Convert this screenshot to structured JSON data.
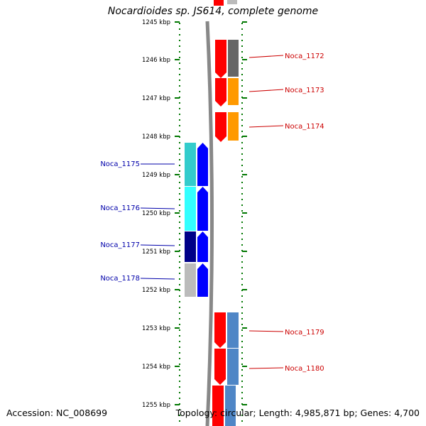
{
  "title": "Nocardioides sp. JS614, complete genome",
  "footer": {
    "accession": "Accession: NC_008699",
    "summary": "Topology: circular; Length: 4,985,871 bp; Genes: 4,700"
  },
  "colors": {
    "axis": "#007700",
    "backbone": "#888888",
    "forward_label": "#cc0000",
    "reverse_label": "#0000aa",
    "red": "#ff0000",
    "gray": "#666666",
    "orange": "#ff9900",
    "cyan": "#33ffff",
    "teal": "#33cccc",
    "blue": "#0000ff",
    "navy": "#000088",
    "lightgray": "#bbbbbb",
    "steelblue": "#4f86c6"
  },
  "ticks": [
    "1245 kbp",
    "1246 kbp",
    "1247 kbp",
    "1248 kbp",
    "1249 kbp",
    "1250 kbp",
    "1251 kbp",
    "1252 kbp",
    "1253 kbp",
    "1254 kbp",
    "1255 kbp"
  ],
  "genes": {
    "forward": [
      "Noca_1172",
      "Noca_1173",
      "Noca_1174",
      "Noca_1179",
      "Noca_1180"
    ],
    "reverse": [
      "Noca_1175",
      "Noca_1176",
      "Noca_1177",
      "Noca_1178"
    ]
  }
}
